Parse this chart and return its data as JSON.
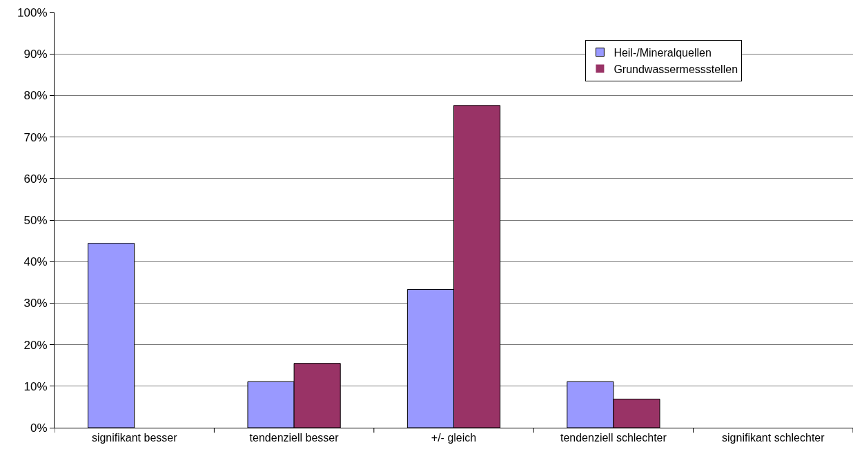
{
  "chart_data": {
    "type": "bar",
    "categories": [
      "signifikant besser",
      "tendenziell besser",
      "+/- gleich",
      "tendenziell schlechter",
      "signifikant schlechter"
    ],
    "series": [
      {
        "name": "Heil-/Mineralquellen",
        "color": "#9999ff",
        "values": [
          44.4,
          11.1,
          33.3,
          11.1,
          0
        ]
      },
      {
        "name": "Grundwassermessstellen",
        "color": "#993366",
        "values": [
          0,
          15.5,
          77.6,
          6.9,
          0
        ]
      }
    ],
    "ylim": [
      0,
      100
    ],
    "yticks": [
      {
        "value": 0,
        "label": "0%"
      },
      {
        "value": 10,
        "label": "10%"
      },
      {
        "value": 20,
        "label": "20%"
      },
      {
        "value": 30,
        "label": "30%"
      },
      {
        "value": 40,
        "label": "40%"
      },
      {
        "value": 50,
        "label": "50%"
      },
      {
        "value": 60,
        "label": "60%"
      },
      {
        "value": 70,
        "label": "70%"
      },
      {
        "value": 80,
        "label": "80%"
      },
      {
        "value": 90,
        "label": "90%"
      },
      {
        "value": 100,
        "label": "100%"
      }
    ],
    "grid": "y",
    "legend": "top right"
  }
}
